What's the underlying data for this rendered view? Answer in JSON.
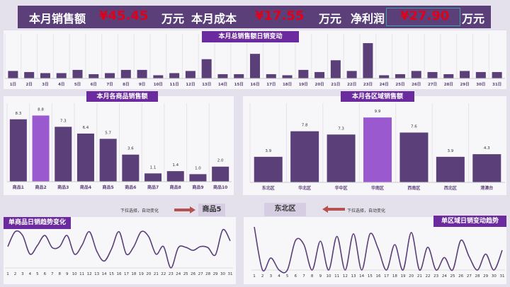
{
  "header": {
    "sales_label": "本月销售额",
    "sales_value": "¥45.45",
    "unit1": "万元",
    "cost_label": "本月成本",
    "cost_value": "¥17.55",
    "unit2": "万元",
    "profit_label": "净利润",
    "profit_value": "¥27.90",
    "unit3": "万元"
  },
  "colors": {
    "bar": "#5b3f79",
    "highlight": "#9b59d0",
    "title": "#6b2b9e",
    "value_red": "#e0001a",
    "line": "#5b3f79",
    "arrow": "#b5524f"
  },
  "chart_data": [
    {
      "type": "bar",
      "title": "本月总销售额日销变动",
      "categories": [
        "1日",
        "2日",
        "3日",
        "4日",
        "5日",
        "6日",
        "7日",
        "8日",
        "9日",
        "10日",
        "11日",
        "12日",
        "13日",
        "14日",
        "15日",
        "16日",
        "17日",
        "18日",
        "19日",
        "20日",
        "21日",
        "22日",
        "23日",
        "24日",
        "25日",
        "26日",
        "27日",
        "28日",
        "29日",
        "30日",
        "31日"
      ],
      "values": [
        7,
        6,
        5,
        5,
        8,
        4,
        5,
        8,
        8,
        3,
        5,
        7,
        18,
        4,
        4,
        23,
        4,
        3,
        8,
        6,
        17,
        7,
        33,
        3,
        4,
        7,
        6,
        4,
        7,
        6,
        6
      ],
      "grid": true
    },
    {
      "type": "bar",
      "title": "本月各商品销售额",
      "categories": [
        "商品1",
        "商品2",
        "商品3",
        "商品4",
        "商品5",
        "商品6",
        "商品7",
        "商品8",
        "商品9",
        "商品10"
      ],
      "values": [
        8.3,
        8.8,
        7.3,
        6.4,
        5.7,
        3.6,
        1.1,
        1.4,
        1.0,
        2.0
      ],
      "highlight_index": 1,
      "grid": true
    },
    {
      "type": "bar",
      "title": "本月各区域销售额",
      "categories": [
        "东北区",
        "华北区",
        "华中区",
        "华南区",
        "西南区",
        "西北区",
        "港澳台"
      ],
      "values": [
        3.9,
        7.8,
        7.3,
        9.9,
        7.6,
        3.9,
        4.3
      ],
      "highlight_index": 3,
      "grid": true
    },
    {
      "type": "line",
      "title": "单商品日销趋势变化",
      "categories": [
        "1",
        "2",
        "3",
        "4",
        "5",
        "6",
        "7",
        "8",
        "9",
        "10",
        "11",
        "12",
        "13",
        "14",
        "15",
        "16",
        "17",
        "18",
        "19",
        "20",
        "21",
        "22",
        "23",
        "24",
        "25",
        "26",
        "27",
        "28",
        "29",
        "30",
        "31"
      ],
      "values": [
        5.6,
        9.5,
        8.5,
        3.6,
        5.9,
        8.5,
        5.3,
        5.6,
        8.5,
        3.6,
        5.9,
        9.5,
        4.4,
        1.8,
        5,
        9.5,
        3.6,
        5.6,
        9.5,
        8.2,
        3.6,
        5.6,
        0,
        5.3,
        5.4,
        4.6,
        5.6,
        5.3,
        3.4,
        10,
        7.1
      ]
    },
    {
      "type": "line",
      "title": "单区域日销变动趋势",
      "categories": [
        "1",
        "2",
        "3",
        "4",
        "5",
        "6",
        "7",
        "8",
        "9",
        "10",
        "11",
        "12",
        "13",
        "14",
        "15",
        "16",
        "17",
        "18",
        "19",
        "20",
        "21",
        "22",
        "23",
        "24",
        "25",
        "26",
        "27",
        "28",
        "29",
        "30",
        "31"
      ],
      "values": [
        10,
        0,
        2.8,
        0,
        0,
        6.9,
        5.9,
        0,
        6.7,
        0,
        7.8,
        0,
        8.4,
        0,
        8.4,
        4.9,
        0,
        5.9,
        0,
        8.7,
        0,
        5.3,
        0,
        2.9,
        0,
        6.9,
        3.1,
        0,
        3.7,
        0,
        4.6
      ]
    }
  ],
  "selectors": {
    "hint_left": "下拉选择，自动变化",
    "product_selected": "商品5",
    "region_selected": "东北区",
    "hint_right": "下拉选择，自动变化"
  }
}
